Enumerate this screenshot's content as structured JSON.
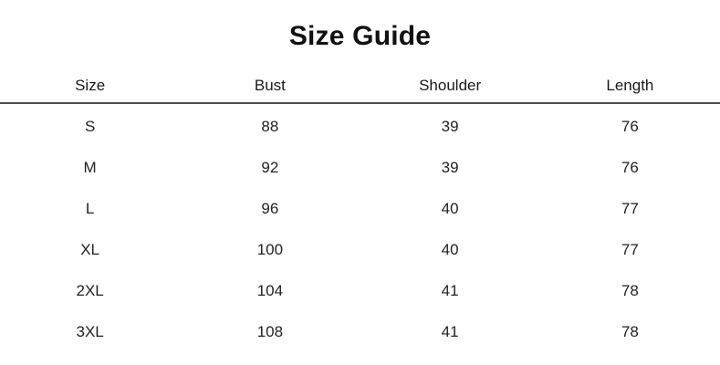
{
  "title": "Size Guide",
  "table": {
    "columns": [
      "Size",
      "Bust",
      "Shoulder",
      "Length"
    ],
    "rows": [
      [
        "S",
        "88",
        "39",
        "76"
      ],
      [
        "M",
        "92",
        "39",
        "76"
      ],
      [
        "L",
        "96",
        "40",
        "77"
      ],
      [
        "XL",
        "100",
        "40",
        "77"
      ],
      [
        "2XL",
        "104",
        "41",
        "78"
      ],
      [
        "3XL",
        "108",
        "41",
        "78"
      ]
    ]
  },
  "colors": {
    "background": "#ffffff",
    "text": "#222222",
    "title_text": "#111111",
    "divider": "#4d4d4d"
  },
  "chart_data": {
    "type": "table",
    "title": "Size Guide",
    "columns": [
      "Size",
      "Bust",
      "Shoulder",
      "Length"
    ],
    "rows": [
      {
        "Size": "S",
        "Bust": 88,
        "Shoulder": 39,
        "Length": 76
      },
      {
        "Size": "M",
        "Bust": 92,
        "Shoulder": 39,
        "Length": 76
      },
      {
        "Size": "L",
        "Bust": 96,
        "Shoulder": 40,
        "Length": 77
      },
      {
        "Size": "XL",
        "Bust": 100,
        "Shoulder": 40,
        "Length": 77
      },
      {
        "Size": "2XL",
        "Bust": 104,
        "Shoulder": 41,
        "Length": 78
      },
      {
        "Size": "3XL",
        "Bust": 108,
        "Shoulder": 41,
        "Length": 78
      }
    ],
    "layout": {
      "grid": "single horizontal divider under header",
      "alignment": "center",
      "legend": "none"
    }
  }
}
